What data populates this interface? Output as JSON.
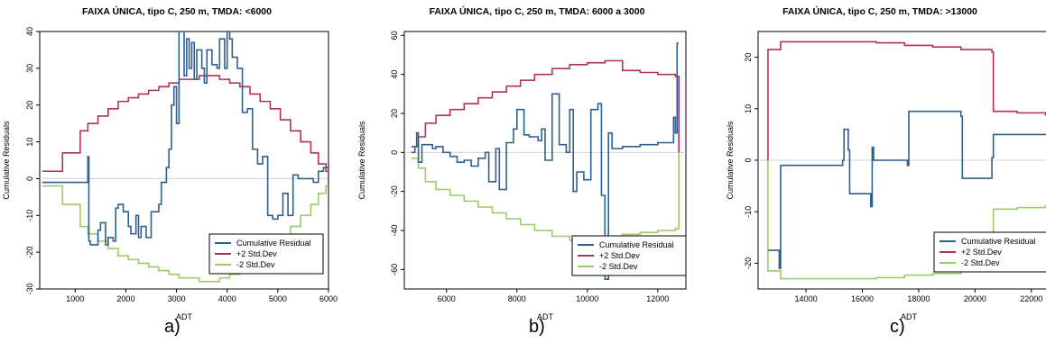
{
  "chart_data": [
    {
      "type": "line",
      "title": "FAIXA ÚNICA, tipo C, 250 m, TMDA: <6000",
      "xlabel": "ADT",
      "ylabel": "Cumulative Residuals",
      "xlim": [
        300,
        6000
      ],
      "ylim": [
        -30,
        40
      ],
      "xticks": [
        "1000",
        "2000",
        "3000",
        "4000",
        "5000",
        "6000"
      ],
      "xtick_values": [
        1000,
        2000,
        3000,
        4000,
        5000,
        6000
      ],
      "yticks": [
        "-30",
        "-20",
        "-10",
        "0",
        "10",
        "20",
        "30",
        "40"
      ],
      "ytick_values": [
        -30,
        -20,
        -10,
        0,
        10,
        20,
        30,
        40
      ],
      "legend_position": "bottom-right",
      "panel_label": "a)",
      "series": [
        {
          "name": "Cumulative Residual",
          "color": "#2e5f8f",
          "x": [
            350,
            750,
            1250,
            1270,
            1300,
            1450,
            1500,
            1600,
            1650,
            1750,
            1800,
            1850,
            1950,
            2050,
            2100,
            2200,
            2250,
            2300,
            2400,
            2500,
            2650,
            2700,
            2800,
            2850,
            2900,
            2950,
            3000,
            3050,
            3100,
            3150,
            3200,
            3250,
            3300,
            3350,
            3400,
            3500,
            3550,
            3600,
            3700,
            3800,
            3850,
            3950,
            4000,
            4050,
            4100,
            4200,
            4300,
            4400,
            4500,
            4600,
            4700,
            4800,
            4900,
            5000,
            5100,
            5200,
            5300,
            5400,
            5500,
            5600,
            5700,
            5800,
            5900,
            6000
          ],
          "y": [
            -1,
            -1,
            6,
            -17,
            -18,
            -14,
            -12,
            -18,
            -16,
            -17,
            -8,
            -7,
            -9,
            -13,
            -15,
            -10,
            -16,
            -13,
            -16,
            -9,
            -7,
            -1,
            3,
            8,
            20,
            25,
            15,
            41,
            40,
            28,
            38,
            30,
            37,
            27,
            35,
            30,
            26,
            35,
            31,
            30,
            38,
            30,
            41,
            38,
            33,
            30,
            18,
            19,
            8,
            4,
            6,
            -10,
            -11,
            -10,
            -4,
            -10,
            1,
            0,
            0,
            0,
            -1,
            2,
            3,
            -2
          ]
        },
        {
          "name": "+2 Std.Dev",
          "color": "#b03060",
          "x": [
            350,
            750,
            1100,
            1250,
            1450,
            1650,
            1850,
            2050,
            2250,
            2450,
            2650,
            2850,
            3050,
            3250,
            3450,
            3650,
            3850,
            4050,
            4250,
            4450,
            4650,
            4850,
            5050,
            5250,
            5450,
            5650,
            5800,
            5950,
            6000
          ],
          "y": [
            2,
            7,
            13,
            15,
            17,
            19,
            21,
            22,
            23,
            24,
            25,
            26,
            27,
            27,
            28,
            28,
            27,
            26,
            25,
            23,
            21,
            19,
            16,
            13,
            10,
            7,
            4,
            2,
            0
          ]
        },
        {
          "name": "-2 Std.Dev",
          "color": "#9ccc65",
          "x": [
            350,
            750,
            1100,
            1250,
            1450,
            1650,
            1850,
            2050,
            2250,
            2450,
            2650,
            2850,
            3050,
            3250,
            3450,
            3650,
            3850,
            4050,
            4250,
            4450,
            4650,
            4850,
            5050,
            5250,
            5450,
            5650,
            5800,
            5950,
            6000
          ],
          "y": [
            -2,
            -7,
            -13,
            -15,
            -17,
            -19,
            -21,
            -22,
            -23,
            -24,
            -25,
            -26,
            -27,
            -27,
            -28,
            -28,
            -27,
            -26,
            -25,
            -23,
            -21,
            -19,
            -16,
            -13,
            -10,
            -7,
            -4,
            -2,
            0
          ]
        }
      ]
    },
    {
      "type": "line",
      "title": "FAIXA ÚNICA, tipo C, 250 m, TMDA: 6000 a 3000",
      "xlabel": "ADT",
      "ylabel": "Cumulative Residuals",
      "xlim": [
        4800,
        12800
      ],
      "ylim": [
        -70,
        62
      ],
      "xticks": [
        "6000",
        "8000",
        "10000",
        "12000"
      ],
      "xtick_values": [
        6000,
        8000,
        10000,
        12000
      ],
      "yticks": [
        "-60",
        "-40",
        "-20",
        "0",
        "20",
        "40",
        "60"
      ],
      "ytick_values": [
        -60,
        -40,
        -20,
        0,
        20,
        40,
        60
      ],
      "legend_position": "bottom-right",
      "panel_label": "b)",
      "series": [
        {
          "name": "Cumulative Residual",
          "color": "#2e5f8f",
          "x": [
            5000,
            5100,
            5150,
            5200,
            5300,
            5600,
            5700,
            5900,
            6100,
            6300,
            6500,
            6700,
            6900,
            7100,
            7200,
            7400,
            7500,
            7700,
            7900,
            8000,
            8200,
            8350,
            8600,
            8700,
            8800,
            9000,
            9200,
            9400,
            9500,
            9600,
            9700,
            9900,
            10100,
            10300,
            10400,
            10500,
            10600,
            10700,
            11000,
            11500,
            12000,
            12400,
            12450,
            12500,
            12550,
            12600
          ],
          "y": [
            0,
            3,
            10,
            -5,
            4,
            2,
            3,
            0,
            -2,
            -5,
            -4,
            -7,
            -3,
            0,
            -15,
            2,
            -19,
            5,
            12,
            22,
            9,
            8,
            6,
            12,
            -4,
            30,
            4,
            0,
            22,
            -20,
            -10,
            -14,
            22,
            25,
            -22,
            -65,
            10,
            2,
            3,
            4,
            5,
            5,
            18,
            10,
            56,
            56
          ]
        },
        {
          "name": "+2 Std.Dev",
          "color": "#b03060",
          "x": [
            5000,
            5200,
            5400,
            5700,
            6100,
            6500,
            6900,
            7300,
            7700,
            8100,
            8500,
            9000,
            9500,
            10000,
            10500,
            11000,
            11500,
            12000,
            12500,
            12600
          ],
          "y": [
            3,
            8,
            15,
            19,
            22,
            25,
            28,
            31,
            34,
            37,
            40,
            43,
            45,
            46,
            47,
            42,
            41,
            40,
            39,
            0
          ]
        },
        {
          "name": "-2 Std.Dev",
          "color": "#9ccc65",
          "x": [
            5000,
            5200,
            5400,
            5700,
            6100,
            6500,
            6900,
            7300,
            7700,
            8100,
            8500,
            9000,
            9500,
            10000,
            10500,
            11000,
            11500,
            12000,
            12500,
            12600
          ],
          "y": [
            -3,
            -8,
            -15,
            -19,
            -22,
            -25,
            -28,
            -31,
            -34,
            -37,
            -40,
            -43,
            -45,
            -46,
            -47,
            -42,
            -41,
            -40,
            -39,
            0
          ]
        }
      ]
    },
    {
      "type": "line",
      "title": "FAIXA ÚNICA, tipo C, 250 m, TMDA: >13000",
      "xlabel": "ADT",
      "ylabel": "Cumulative Residuals",
      "xlim": [
        12300,
        23000
      ],
      "ylim": [
        -25,
        25
      ],
      "xticks": [
        "14000",
        "16000",
        "18000",
        "20000",
        "22000"
      ],
      "xtick_values": [
        14000,
        16000,
        18000,
        20000,
        22000
      ],
      "yticks": [
        "-20",
        "-10",
        "0",
        "10",
        "20"
      ],
      "ytick_values": [
        -20,
        -10,
        0,
        10,
        20
      ],
      "legend_position": "bottom-right",
      "panel_label": "c)",
      "series": [
        {
          "name": "Cumulative Residual",
          "color": "#2e5f8f",
          "x": [
            12650,
            13000,
            13050,
            13100,
            15300,
            15350,
            15500,
            15550,
            16300,
            16350,
            16400,
            17600,
            17650,
            19500,
            19550,
            20600,
            20650,
            23000
          ],
          "y": [
            -17.5,
            -17.5,
            -21,
            -1,
            0,
            6,
            2,
            -6.5,
            -9,
            2.5,
            0,
            -1,
            9.5,
            8.5,
            -3.5,
            0.5,
            5,
            3
          ]
        },
        {
          "name": "+2 Std.Dev",
          "color": "#b03060",
          "x": [
            12600,
            12650,
            12800,
            13100,
            14000,
            15000,
            16000,
            16500,
            17500,
            18500,
            19500,
            20600,
            20650,
            21500,
            22500,
            23000
          ],
          "y": [
            0,
            21.5,
            21.5,
            23,
            23,
            23,
            23,
            22.8,
            22.3,
            22,
            21.5,
            21,
            9.5,
            9.2,
            8.8,
            8.5
          ]
        },
        {
          "name": "-2 Std.Dev",
          "color": "#9ccc65",
          "x": [
            12600,
            12650,
            12800,
            13100,
            14000,
            15000,
            16000,
            16500,
            17500,
            18500,
            19500,
            20600,
            20650,
            21500,
            22500,
            23000
          ],
          "y": [
            0,
            -21.5,
            -21.5,
            -23,
            -23,
            -23,
            -23,
            -22.8,
            -22.3,
            -22,
            -21.5,
            -21,
            -9.5,
            -9.2,
            -8.8,
            -8.5
          ]
        }
      ]
    }
  ]
}
